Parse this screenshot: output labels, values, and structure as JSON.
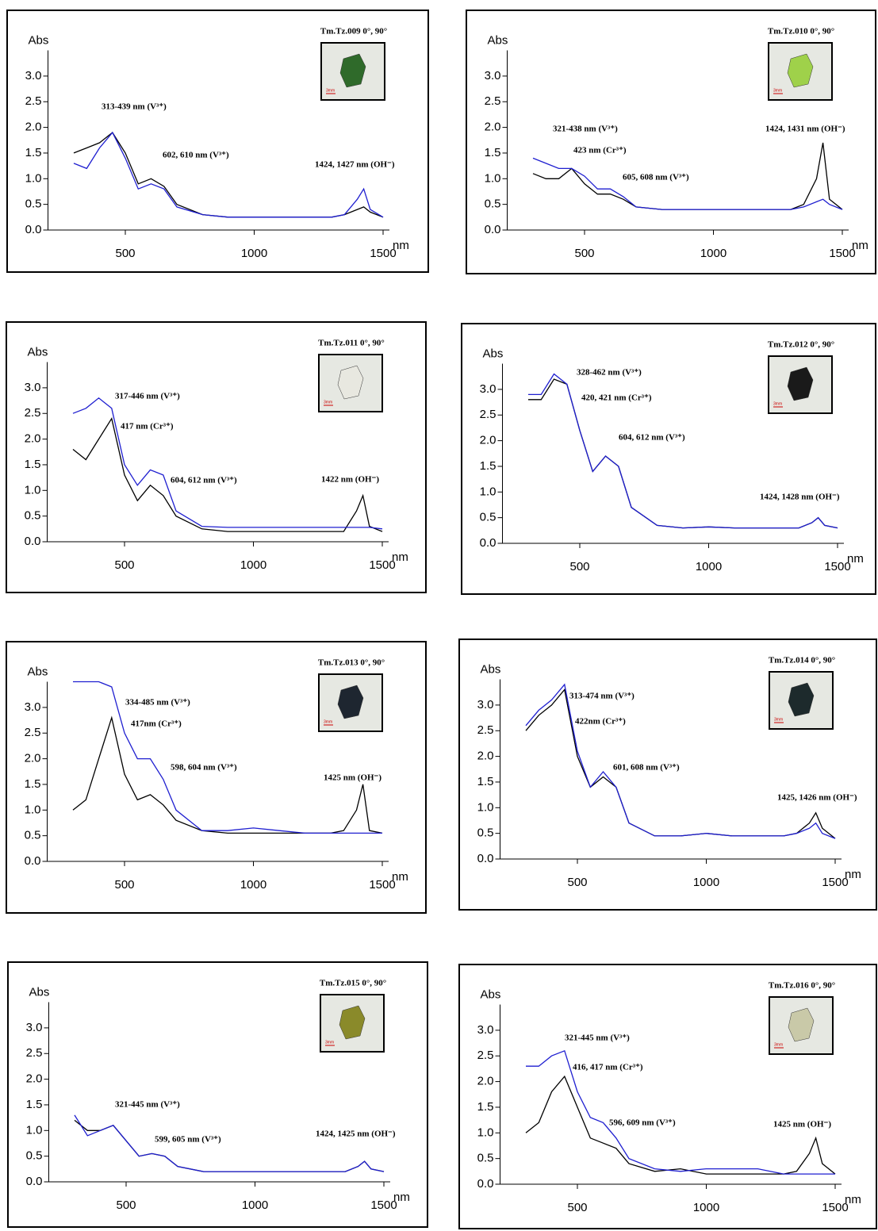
{
  "chart_data": [
    {
      "type": "line",
      "title": "Tm.Tz.009 0°, 90°",
      "scale_label": "3mm",
      "y_label": "Abs",
      "x_label": "nm",
      "annotations": [
        "313-439 nm (V³⁺)",
        "602, 610 nm (V³⁺)",
        "1424, 1427 nm (OH⁻)"
      ],
      "xlim": [
        200,
        1500
      ],
      "ylim": [
        0,
        3.5
      ],
      "xticks": [
        500,
        1000,
        1500
      ],
      "yticks": [
        {
          "value": 0,
          "label": "0.0"
        },
        0.5,
        {
          "value": 1,
          "label": "1.0"
        },
        1.5,
        {
          "value": 2,
          "label": "2.0"
        },
        2.5,
        {
          "value": 3,
          "label": "3.0"
        }
      ],
      "x": [
        300,
        350,
        400,
        450,
        500,
        550,
        600,
        650,
        700,
        800,
        900,
        1000,
        1100,
        1200,
        1300,
        1350,
        1400,
        1425,
        1450,
        1500
      ],
      "series": [
        {
          "color": "#000000",
          "values": [
            1.5,
            1.6,
            1.7,
            1.9,
            1.5,
            0.9,
            1.0,
            0.85,
            0.5,
            0.3,
            0.25,
            0.25,
            0.25,
            0.25,
            0.25,
            0.3,
            0.4,
            0.45,
            0.35,
            0.25
          ]
        },
        {
          "color": "#1f1fd0",
          "values": [
            1.3,
            1.2,
            1.6,
            1.9,
            1.4,
            0.8,
            0.9,
            0.8,
            0.45,
            0.3,
            0.25,
            0.25,
            0.25,
            0.25,
            0.25,
            0.3,
            0.6,
            0.8,
            0.4,
            0.25
          ]
        }
      ]
    },
    {
      "type": "line",
      "title": "Tm.Tz.010 0°, 90°",
      "scale_label": "3mm",
      "y_label": "Abs",
      "x_label": "nm",
      "annotations": [
        "321-438 nm (V³⁺)",
        "423 nm (Cr³⁺)",
        "605, 608 nm (V³⁺)",
        "1424, 1431 nm (OH⁻)"
      ],
      "xlim": [
        200,
        1500
      ],
      "ylim": [
        0,
        3.5
      ],
      "xticks": [
        500,
        1000,
        1500
      ],
      "yticks": [
        {
          "value": 0,
          "label": "0.0"
        },
        0.5,
        {
          "value": 1,
          "label": "1.0"
        },
        1.5,
        {
          "value": 2,
          "label": "2.0"
        },
        2.5,
        {
          "value": 3,
          "label": "3.0"
        }
      ],
      "x": [
        300,
        350,
        400,
        450,
        500,
        550,
        600,
        650,
        700,
        800,
        900,
        1000,
        1100,
        1200,
        1300,
        1350,
        1400,
        1425,
        1450,
        1500
      ],
      "series": [
        {
          "color": "#000000",
          "values": [
            1.1,
            1.0,
            1.0,
            1.2,
            0.9,
            0.7,
            0.7,
            0.6,
            0.45,
            0.4,
            0.4,
            0.4,
            0.4,
            0.4,
            0.4,
            0.5,
            1.0,
            1.7,
            0.6,
            0.4
          ]
        },
        {
          "color": "#1f1fd0",
          "values": [
            1.4,
            1.3,
            1.2,
            1.2,
            1.05,
            0.8,
            0.8,
            0.65,
            0.45,
            0.4,
            0.4,
            0.4,
            0.4,
            0.4,
            0.4,
            0.45,
            0.55,
            0.6,
            0.5,
            0.4
          ]
        }
      ]
    },
    {
      "type": "line",
      "title": "Tm.Tz.011 0°, 90°",
      "scale_label": "3mm",
      "y_label": "Abs",
      "x_label": "nm",
      "annotations": [
        "317-446 nm (V³⁺)",
        "417 nm (Cr³⁺)",
        "604, 612 nm (V³⁺)",
        "1422 nm (OH⁻)"
      ],
      "xlim": [
        200,
        1500
      ],
      "ylim": [
        0,
        3.5
      ],
      "xticks": [
        500,
        1000,
        1500
      ],
      "yticks": [
        {
          "value": 0,
          "label": "0.0"
        },
        0.5,
        {
          "value": 1,
          "label": "1.0"
        },
        1.5,
        {
          "value": 2,
          "label": "2.0"
        },
        2.5,
        {
          "value": 3,
          "label": "3.0"
        }
      ],
      "x": [
        300,
        350,
        400,
        450,
        500,
        550,
        600,
        650,
        700,
        800,
        900,
        1000,
        1100,
        1200,
        1300,
        1350,
        1400,
        1425,
        1450,
        1500
      ],
      "series": [
        {
          "color": "#000000",
          "values": [
            1.8,
            1.6,
            2.0,
            2.4,
            1.3,
            0.8,
            1.1,
            0.9,
            0.5,
            0.25,
            0.2,
            0.2,
            0.2,
            0.2,
            0.2,
            0.2,
            0.6,
            0.9,
            0.3,
            0.2
          ]
        },
        {
          "color": "#1f1fd0",
          "values": [
            2.5,
            2.6,
            2.8,
            2.6,
            1.5,
            1.1,
            1.4,
            1.3,
            0.6,
            0.3,
            0.28,
            0.28,
            0.28,
            0.28,
            0.28,
            0.28,
            0.28,
            0.28,
            0.28,
            0.25
          ]
        }
      ]
    },
    {
      "type": "line",
      "title": "Tm.Tz.012 0°, 90°",
      "scale_label": "3mm",
      "y_label": "Abs",
      "x_label": "nm",
      "annotations": [
        "328-462 nm (V³⁺)",
        "420, 421 nm (Cr³⁺)",
        "604, 612 nm (V³⁺)",
        "1424, 1428 nm (OH⁻)"
      ],
      "xlim": [
        200,
        1500
      ],
      "ylim": [
        0,
        3.5
      ],
      "xticks": [
        500,
        1000,
        1500
      ],
      "yticks": [
        {
          "value": 0,
          "label": "0.0"
        },
        0.5,
        {
          "value": 1,
          "label": "1.0"
        },
        1.5,
        {
          "value": 2,
          "label": "2.0"
        },
        2.5,
        {
          "value": 3,
          "label": "3.0"
        }
      ],
      "x": [
        300,
        350,
        400,
        450,
        500,
        550,
        600,
        650,
        700,
        800,
        900,
        1000,
        1100,
        1200,
        1300,
        1350,
        1400,
        1425,
        1450,
        1500
      ],
      "series": [
        {
          "color": "#000000",
          "values": [
            2.8,
            2.8,
            3.2,
            3.1,
            2.2,
            1.4,
            1.7,
            1.5,
            0.7,
            0.35,
            0.3,
            0.32,
            0.3,
            0.3,
            0.3,
            0.3,
            0.4,
            0.5,
            0.35,
            0.3
          ]
        },
        {
          "color": "#1f1fd0",
          "values": [
            2.9,
            2.9,
            3.3,
            3.1,
            2.2,
            1.4,
            1.7,
            1.5,
            0.7,
            0.35,
            0.3,
            0.32,
            0.3,
            0.3,
            0.3,
            0.3,
            0.4,
            0.5,
            0.35,
            0.3
          ]
        }
      ]
    },
    {
      "type": "line",
      "title": "Tm.Tz.013 0°, 90°",
      "scale_label": "3mm",
      "y_label": "Abs",
      "x_label": "nm",
      "annotations": [
        "334-485 nm (V³⁺)",
        "417nm (Cr³⁺)",
        "598, 604 nm (V³⁺)",
        "1425 nm (OH⁻)"
      ],
      "xlim": [
        200,
        1500
      ],
      "ylim": [
        0,
        3.5
      ],
      "xticks": [
        500,
        1000,
        1500
      ],
      "yticks": [
        {
          "value": 0,
          "label": "0.0"
        },
        0.5,
        {
          "value": 1,
          "label": "1.0"
        },
        1.5,
        {
          "value": 2,
          "label": "2.0"
        },
        2.5,
        {
          "value": 3,
          "label": "3.0"
        }
      ],
      "x": [
        300,
        350,
        400,
        450,
        500,
        550,
        600,
        650,
        700,
        800,
        900,
        1000,
        1100,
        1200,
        1300,
        1350,
        1400,
        1425,
        1450,
        1500
      ],
      "series": [
        {
          "color": "#000000",
          "values": [
            1.0,
            1.2,
            2.0,
            2.8,
            1.7,
            1.2,
            1.3,
            1.1,
            0.8,
            0.6,
            0.55,
            0.55,
            0.55,
            0.55,
            0.55,
            0.6,
            1.0,
            1.5,
            0.6,
            0.55
          ]
        },
        {
          "color": "#1f1fd0",
          "values": [
            3.5,
            3.5,
            3.5,
            3.4,
            2.5,
            2.0,
            2.0,
            1.6,
            1.0,
            0.6,
            0.6,
            0.65,
            0.6,
            0.55,
            0.55,
            0.55,
            0.55,
            0.55,
            0.55,
            0.55
          ]
        }
      ]
    },
    {
      "type": "line",
      "title": "Tm.Tz.014 0°, 90°",
      "scale_label": "3mm",
      "y_label": "Abs",
      "x_label": "nm",
      "annotations": [
        "313-474 nm (V³⁺)",
        "422nm (Cr³⁺)",
        "601, 608 nm (V³⁺)",
        "1425, 1426 nm (OH⁻)"
      ],
      "xlim": [
        200,
        1500
      ],
      "ylim": [
        0,
        3.5
      ],
      "xticks": [
        500,
        1000,
        1500
      ],
      "yticks": [
        {
          "value": 0,
          "label": "0.0"
        },
        0.5,
        {
          "value": 1,
          "label": "1.0"
        },
        1.5,
        {
          "value": 2,
          "label": "2.0"
        },
        2.5,
        {
          "value": 3,
          "label": "3.0"
        }
      ],
      "x": [
        300,
        350,
        400,
        450,
        500,
        550,
        600,
        650,
        700,
        800,
        900,
        1000,
        1100,
        1200,
        1300,
        1350,
        1400,
        1425,
        1450,
        1500
      ],
      "series": [
        {
          "color": "#000000",
          "values": [
            2.5,
            2.8,
            3.0,
            3.3,
            2.0,
            1.4,
            1.6,
            1.4,
            0.7,
            0.45,
            0.45,
            0.5,
            0.45,
            0.45,
            0.45,
            0.5,
            0.7,
            0.9,
            0.6,
            0.4
          ]
        },
        {
          "color": "#1f1fd0",
          "values": [
            2.6,
            2.9,
            3.1,
            3.4,
            2.1,
            1.4,
            1.7,
            1.4,
            0.7,
            0.45,
            0.45,
            0.5,
            0.45,
            0.45,
            0.45,
            0.5,
            0.6,
            0.7,
            0.5,
            0.4
          ]
        }
      ]
    },
    {
      "type": "line",
      "title": "Tm.Tz.015 0°, 90°",
      "scale_label": "3mm",
      "y_label": "Abs",
      "x_label": "nm",
      "annotations": [
        "321-445 nm (V³⁺)",
        "599, 605 nm (V³⁺)",
        "1424, 1425 nm (OH⁻)"
      ],
      "xlim": [
        200,
        1500
      ],
      "ylim": [
        0,
        3.5
      ],
      "xticks": [
        500,
        1000,
        1500
      ],
      "yticks": [
        {
          "value": 0,
          "label": "0.0"
        },
        0.5,
        {
          "value": 1,
          "label": "1.0"
        },
        1.5,
        {
          "value": 2,
          "label": "2.0"
        },
        2.5,
        {
          "value": 3,
          "label": "3.0"
        }
      ],
      "x": [
        300,
        350,
        400,
        450,
        500,
        550,
        600,
        650,
        700,
        800,
        900,
        1000,
        1100,
        1200,
        1300,
        1350,
        1400,
        1425,
        1450,
        1500
      ],
      "series": [
        {
          "color": "#000000",
          "values": [
            1.2,
            1.0,
            1.0,
            1.1,
            0.8,
            0.5,
            0.55,
            0.5,
            0.3,
            0.2,
            0.2,
            0.2,
            0.2,
            0.2,
            0.2,
            0.2,
            0.3,
            0.4,
            0.25,
            0.2
          ]
        },
        {
          "color": "#1f1fd0",
          "values": [
            1.3,
            0.9,
            1.0,
            1.1,
            0.8,
            0.5,
            0.55,
            0.5,
            0.3,
            0.2,
            0.2,
            0.2,
            0.2,
            0.2,
            0.2,
            0.2,
            0.3,
            0.4,
            0.25,
            0.2
          ]
        }
      ]
    },
    {
      "type": "line",
      "title": "Tm.Tz.016 0°, 90°",
      "scale_label": "3mm",
      "y_label": "Abs",
      "x_label": "nm",
      "annotations": [
        "321-445 nm (V³⁺)",
        "416, 417 nm (Cr³⁺)",
        "596, 609 nm (V³⁺)",
        "1425 nm (OH⁻)"
      ],
      "xlim": [
        200,
        1500
      ],
      "ylim": [
        0,
        3.5
      ],
      "xticks": [
        500,
        1000,
        1500
      ],
      "yticks": [
        {
          "value": 0,
          "label": "0.0"
        },
        0.5,
        {
          "value": 1,
          "label": "1.0"
        },
        1.5,
        {
          "value": 2,
          "label": "2.0"
        },
        2.5,
        {
          "value": 3,
          "label": "3.0"
        }
      ],
      "x": [
        300,
        350,
        400,
        450,
        500,
        550,
        600,
        650,
        700,
        800,
        900,
        1000,
        1100,
        1200,
        1300,
        1350,
        1400,
        1425,
        1450,
        1500
      ],
      "series": [
        {
          "color": "#000000",
          "values": [
            1.0,
            1.2,
            1.8,
            2.1,
            1.5,
            0.9,
            0.8,
            0.7,
            0.4,
            0.25,
            0.3,
            0.2,
            0.2,
            0.2,
            0.2,
            0.25,
            0.6,
            0.9,
            0.4,
            0.2
          ]
        },
        {
          "color": "#1f1fd0",
          "values": [
            2.3,
            2.3,
            2.5,
            2.6,
            1.8,
            1.3,
            1.2,
            0.9,
            0.5,
            0.3,
            0.25,
            0.3,
            0.3,
            0.3,
            0.2,
            0.2,
            0.2,
            0.2,
            0.2,
            0.2
          ]
        }
      ]
    }
  ]
}
